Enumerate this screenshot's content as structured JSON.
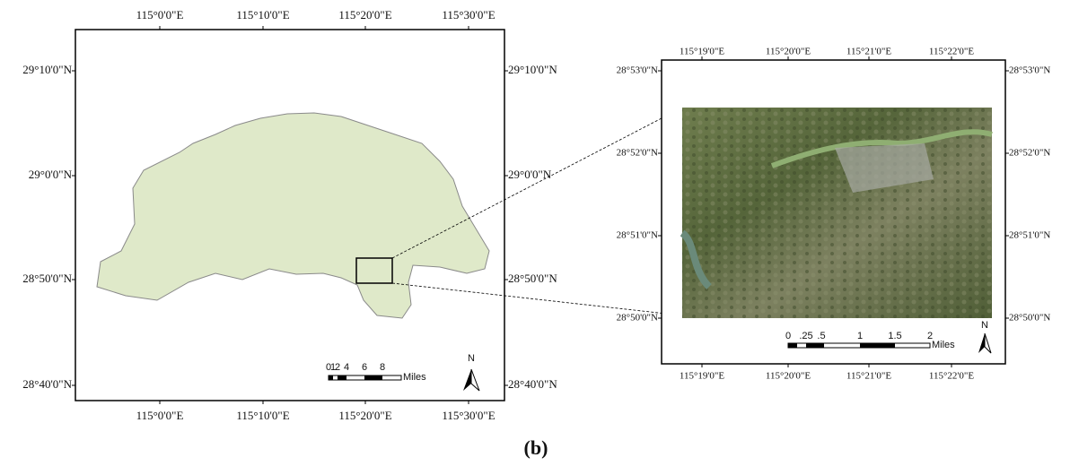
{
  "left_map": {
    "top_ticks": [
      "115°0'0\"E",
      "115°10'0\"E",
      "115°20'0\"E",
      "115°30'0\"E"
    ],
    "bottom_ticks": [
      "115°0'0\"E",
      "115°10'0\"E",
      "115°20'0\"E",
      "115°30'0\"E"
    ],
    "left_ticks": [
      "29°10'0\"N",
      "29°0'0\"N",
      "28°50'0\"N",
      "28°40'0\"N"
    ],
    "right_ticks": [
      "29°10'0\"N",
      "29°0'0\"N",
      "28°50'0\"N",
      "28°40'0\"N"
    ],
    "scale_labels": [
      "0",
      "1",
      "2",
      "4",
      "6",
      "8"
    ],
    "scale_unit": "Miles",
    "north": "N"
  },
  "right_map": {
    "top_ticks": [
      "115°19'0\"E",
      "115°20'0\"E",
      "115°21'0\"E",
      "115°22'0\"E"
    ],
    "bottom_ticks": [
      "115°19'0\"E",
      "115°20'0\"E",
      "115°21'0\"E",
      "115°22'0\"E"
    ],
    "left_ticks": [
      "28°53'0\"N",
      "28°52'0\"N",
      "28°51'0\"N",
      "28°50'0\"N"
    ],
    "right_ticks": [
      "28°53'0\"N",
      "28°52'0\"N",
      "28°51'0\"N",
      "28°50'0\"N"
    ],
    "scale_labels": [
      "0",
      ".25",
      ".5",
      "1",
      "1.5",
      "2"
    ],
    "scale_unit": "Miles",
    "north": "N"
  },
  "caption": "(b)"
}
